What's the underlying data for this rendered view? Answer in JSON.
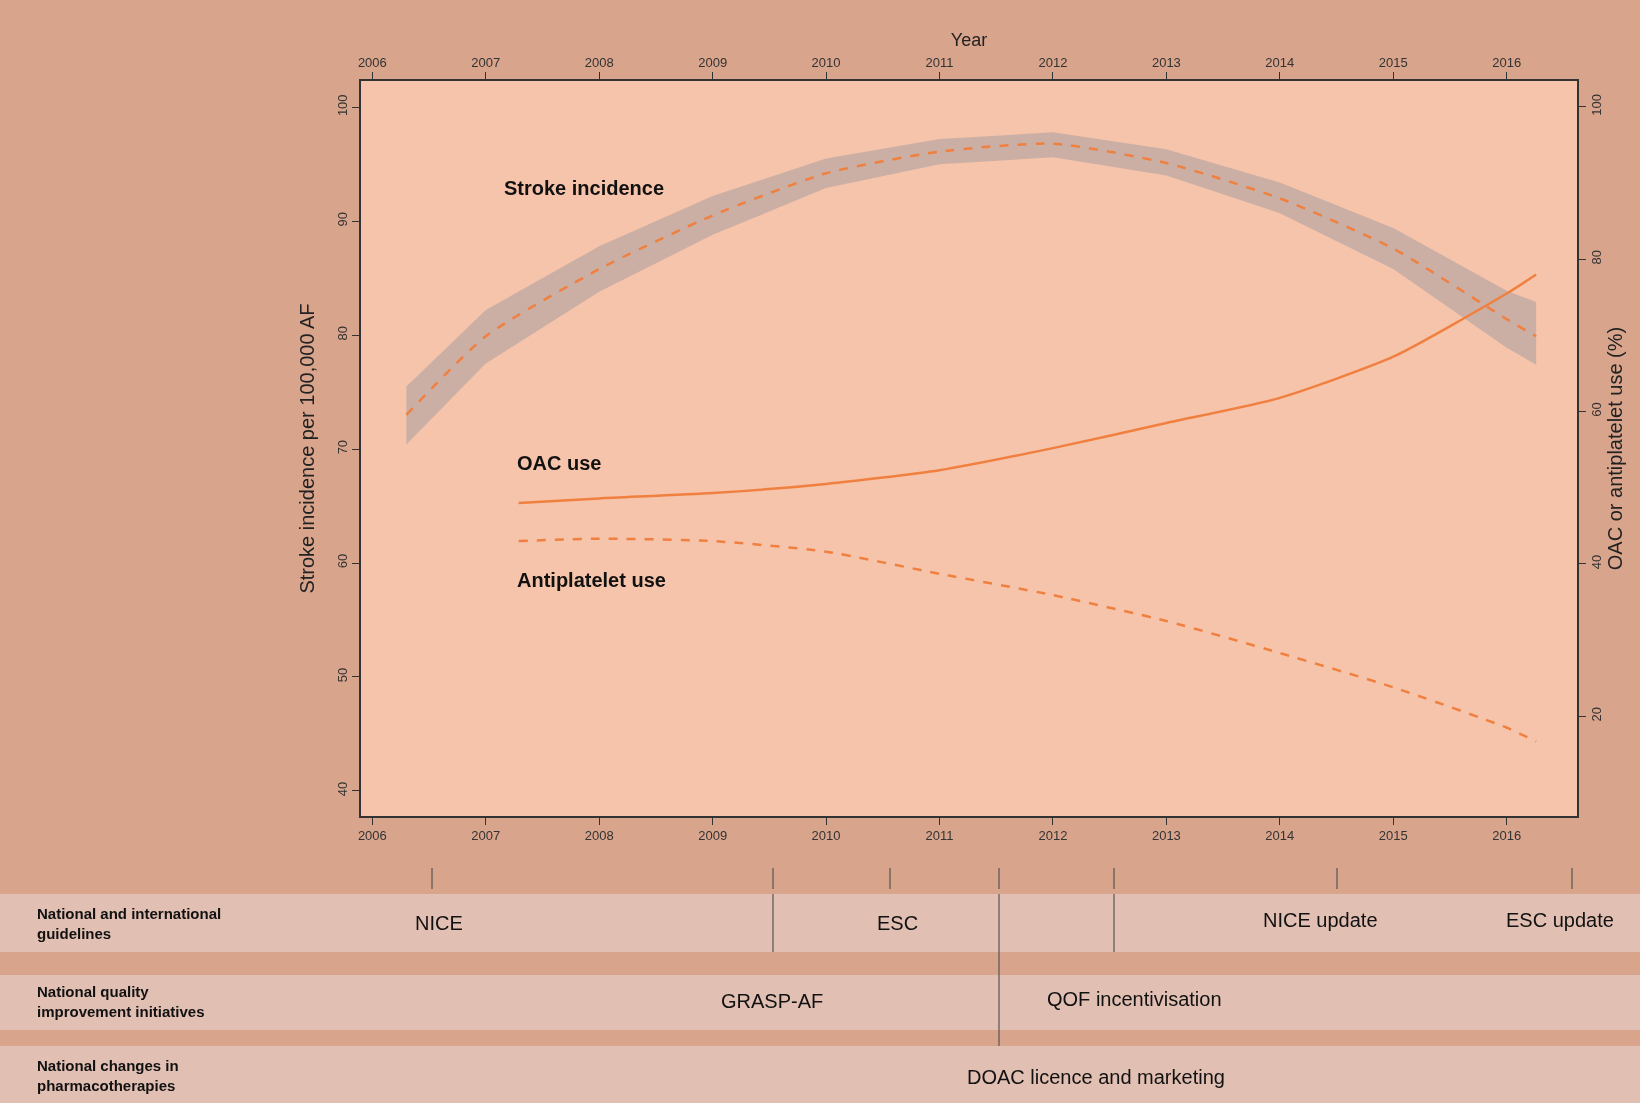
{
  "chart_data": {
    "type": "line",
    "x2label": "Year",
    "ylabel": "Stroke incidence per 100,000 AF",
    "y2label": "OAC or antiplatelet use (%)",
    "xlim": [
      2005.9,
      2016.62
    ],
    "xticks": [
      2006,
      2007,
      2008,
      2009,
      2010,
      2011,
      2012,
      2013,
      2014,
      2015,
      2016
    ],
    "x2lim": [
      2005.9,
      2016.62
    ],
    "x2ticks": [
      2006,
      2007,
      2008,
      2009,
      2010,
      2011,
      2012,
      2013,
      2014,
      2015,
      2016
    ],
    "ylim": [
      37.8,
      102.3
    ],
    "yticks": [
      40,
      50,
      60,
      70,
      80,
      90,
      100
    ],
    "y2lim": [
      6.9,
      103.4
    ],
    "y2ticks": [
      20,
      40,
      60,
      80,
      100
    ],
    "marker": "none",
    "grid": false,
    "legend": false,
    "series": [
      {
        "name": "Stroke incidence",
        "color": "#f08040",
        "line_style": "dashed",
        "x": [
          2006.3,
          2007,
          2008,
          2009,
          2010,
          2011,
          2012,
          2013,
          2014,
          2015,
          2016,
          2016.26
        ],
        "values": [
          73.0,
          79.9,
          85.8,
          90.5,
          94.2,
          96.1,
          96.8,
          95.1,
          92.0,
          87.6,
          81.4,
          79.9
        ],
        "lower": [
          70.4,
          77.5,
          83.8,
          88.8,
          92.9,
          95.0,
          95.6,
          94.0,
          90.7,
          85.8,
          78.9,
          77.4
        ],
        "upper": [
          75.5,
          82.2,
          87.8,
          92.2,
          95.5,
          97.2,
          97.8,
          96.3,
          93.4,
          89.4,
          83.9,
          82.9
        ]
      },
      {
        "name": "OAC use",
        "color": "#f08040",
        "line_style": "solid",
        "axis": "y2",
        "x": [
          2007.29,
          2008,
          2009,
          2010,
          2011,
          2012,
          2013,
          2014,
          2015,
          2016,
          2016.26
        ],
        "values": [
          48.0,
          48.6,
          49.3,
          50.5,
          52.3,
          55.2,
          58.5,
          61.8,
          67.2,
          75.5,
          78.0
        ]
      },
      {
        "name": "Antiplatelet use",
        "color": "#f08040",
        "line_style": "dashed",
        "axis": "y2",
        "x": [
          2007.29,
          2008,
          2009,
          2010,
          2011,
          2012,
          2013,
          2014,
          2015,
          2016,
          2016.26
        ],
        "values": [
          43.0,
          43.3,
          43.0,
          41.6,
          38.7,
          35.9,
          32.5,
          28.3,
          23.8,
          18.5,
          16.7
        ]
      }
    ],
    "annotations": [
      "National and international guidelines",
      "National quality improvement initiatives",
      "National changes in pharmacotherapies",
      "NICE",
      "ESC",
      "NICE update",
      "ESC update",
      "GRASP-AF",
      "QOF incentivisation",
      "DOAC licence and marketing"
    ]
  }
}
